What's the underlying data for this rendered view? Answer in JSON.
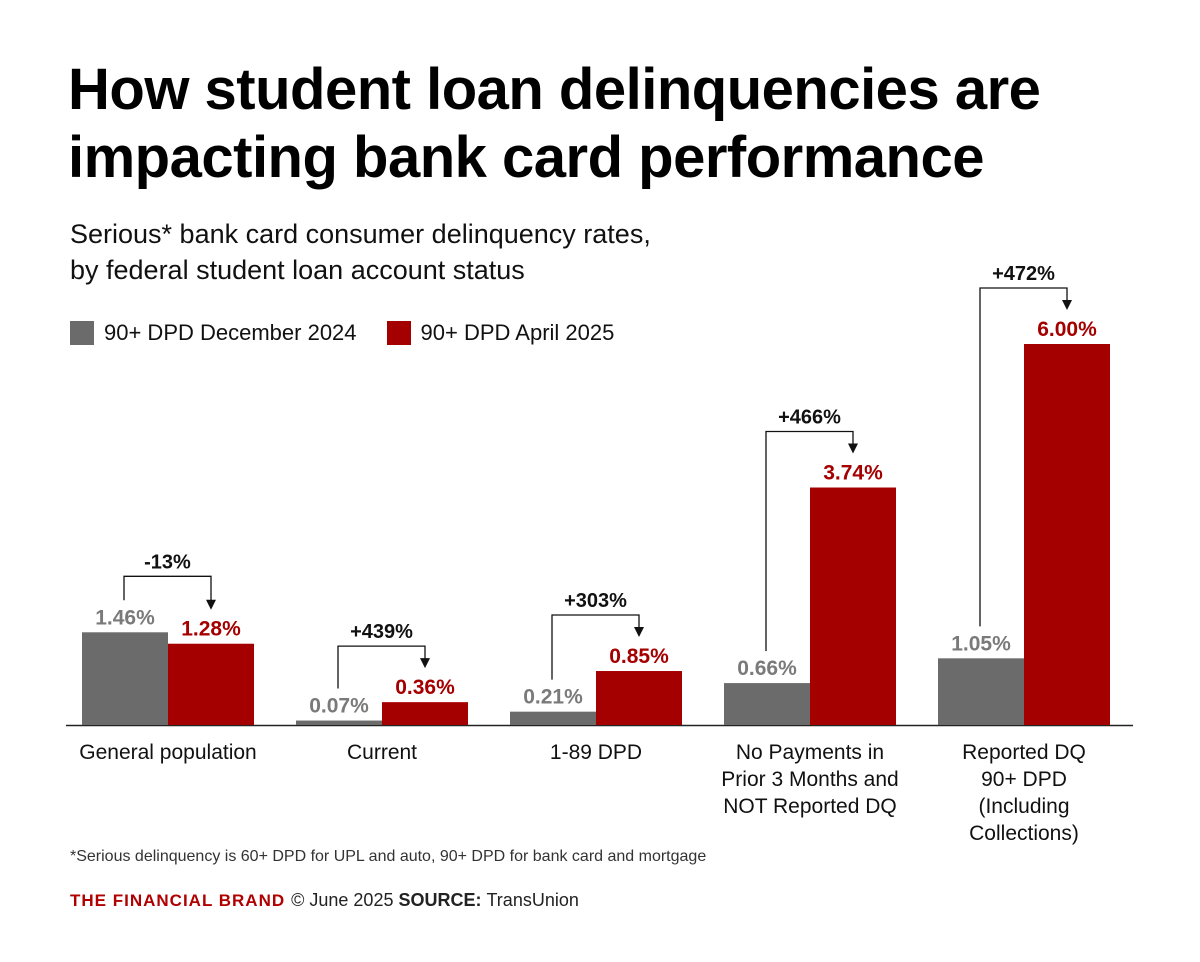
{
  "title": "How student loan delinquencies are impacting bank card performance",
  "subtitle_line1": "Serious* bank card consumer delinquency rates,",
  "subtitle_line2": "by federal student loan account status",
  "footnote": "*Serious delinquency is 60+ DPD for UPL and auto, 90+ DPD for bank card and mortgage",
  "footer": {
    "brand": "THE FINANCIAL BRAND",
    "copyright": "© June 2025",
    "source_label": "SOURCE:",
    "source": "TransUnion"
  },
  "colors": {
    "dec_2024": "#6b6b6b",
    "apr_2025": "#a50000"
  },
  "chart_data": {
    "type": "bar",
    "categories": [
      [
        "General population"
      ],
      [
        "Current"
      ],
      [
        "1-89 DPD"
      ],
      [
        "No Payments in",
        "Prior 3 Months and",
        "NOT Reported DQ"
      ],
      [
        "Reported DQ",
        "90+ DPD",
        "(Including",
        "Collections)"
      ]
    ],
    "series": [
      {
        "name": "90+ DPD December 2024",
        "values": [
          1.46,
          0.07,
          0.21,
          0.66,
          1.05
        ],
        "labels": [
          "1.46%",
          "0.07%",
          "0.21%",
          "0.66%",
          "1.05%"
        ]
      },
      {
        "name": "90+ DPD April 2025",
        "values": [
          1.28,
          0.36,
          0.85,
          3.74,
          6.0
        ],
        "labels": [
          "1.28%",
          "0.36%",
          "0.85%",
          "3.74%",
          "6.00%"
        ]
      }
    ],
    "changes": [
      "-13%",
      "+439%",
      "+303%",
      "+466%",
      "+472%"
    ],
    "ylim": [
      0,
      6.0
    ],
    "legend": "top-left"
  }
}
